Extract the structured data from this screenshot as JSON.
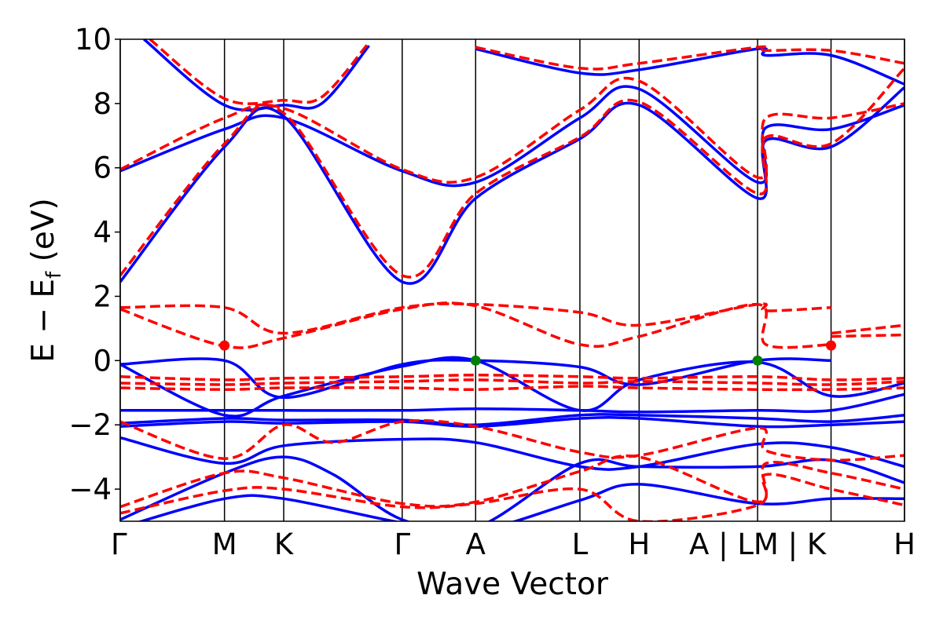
{
  "chart_data": {
    "type": "line",
    "xlabel": "Wave Vector",
    "ylabel_main": "E − E",
    "ylabel_sub": "f",
    "ylabel_unit": " (eV)",
    "ylim": [
      -5,
      10
    ],
    "yticks": [
      -4,
      -2,
      0,
      2,
      4,
      6,
      8,
      10
    ],
    "ytick_labels": [
      "−4",
      "−2",
      "0",
      "2",
      "4",
      "6",
      "8",
      "10"
    ],
    "xlim": [
      0,
      6.62
    ],
    "kpoints": [
      {
        "pos": 0.0,
        "label": "Γ"
      },
      {
        "pos": 0.88,
        "label": "M"
      },
      {
        "pos": 1.38,
        "label": "K"
      },
      {
        "pos": 2.38,
        "label": "Γ"
      },
      {
        "pos": 3.0,
        "label": "A"
      },
      {
        "pos": 3.88,
        "label": "L"
      },
      {
        "pos": 4.38,
        "label": "H"
      },
      {
        "pos": 5.38,
        "label": "A | LM | K"
      },
      {
        "pos": 6.0,
        "label": ""
      },
      {
        "pos": 6.62,
        "label": "H"
      }
    ],
    "series": [
      {
        "style": "solid",
        "color": "#0000ff",
        "bands": [
          [
            [
              0,
              -0.12
            ],
            [
              0.88,
              0.0
            ],
            [
              1.38,
              -1.15
            ],
            [
              2.38,
              -0.12
            ],
            [
              3.0,
              0.0
            ],
            [
              3.88,
              -0.2
            ],
            [
              4.38,
              -0.75
            ],
            [
              5.38,
              0.0
            ],
            [
              6.0,
              0.0
            ]
          ],
          [
            [
              0,
              -0.12
            ],
            [
              0.88,
              -1.7
            ],
            [
              1.38,
              -1.1
            ],
            [
              2.38,
              -0.18
            ],
            [
              3.0,
              0.0
            ],
            [
              3.88,
              -1.55
            ],
            [
              4.38,
              -0.6
            ],
            [
              5.38,
              -0.05
            ],
            [
              6.0,
              -1.1
            ],
            [
              6.62,
              -0.7
            ]
          ],
          [
            [
              0,
              -1.55
            ],
            [
              0.88,
              -1.55
            ],
            [
              1.38,
              -1.55
            ],
            [
              2.38,
              -1.55
            ],
            [
              3.0,
              -1.5
            ],
            [
              3.88,
              -1.55
            ],
            [
              4.38,
              -1.6
            ],
            [
              5.38,
              -1.55
            ],
            [
              6.0,
              -1.55
            ],
            [
              6.62,
              -1.05
            ]
          ],
          [
            [
              0,
              -1.95
            ],
            [
              0.88,
              -1.8
            ],
            [
              1.38,
              -1.85
            ],
            [
              2.38,
              -1.85
            ],
            [
              3.0,
              -2.0
            ],
            [
              3.88,
              -1.7
            ],
            [
              4.38,
              -1.7
            ],
            [
              5.38,
              -1.8
            ],
            [
              6.0,
              -1.9
            ],
            [
              6.62,
              -1.7
            ]
          ],
          [
            [
              0,
              -2.05
            ],
            [
              0.88,
              -1.9
            ],
            [
              1.38,
              -1.95
            ],
            [
              2.38,
              -1.9
            ],
            [
              3.0,
              -2.05
            ],
            [
              3.88,
              -1.8
            ],
            [
              4.38,
              -1.8
            ],
            [
              5.38,
              -2.05
            ],
            [
              6.0,
              -2.0
            ],
            [
              6.62,
              -1.9
            ]
          ],
          [
            [
              0,
              -2.4
            ],
            [
              0.88,
              -3.2
            ],
            [
              1.38,
              -2.65
            ],
            [
              2.38,
              -2.45
            ],
            [
              3.0,
              -2.55
            ],
            [
              3.88,
              -3.3
            ],
            [
              4.38,
              -3.3
            ],
            [
              5.38,
              -2.6
            ],
            [
              6.0,
              -2.7
            ],
            [
              6.62,
              -3.3
            ]
          ],
          [
            [
              0,
              -4.95
            ],
            [
              0.88,
              -3.5
            ],
            [
              1.38,
              -3.0
            ],
            [
              1.8,
              -3.55
            ],
            [
              2.38,
              -4.95
            ],
            [
              3.0,
              -5.2
            ],
            [
              3.88,
              -3.2
            ],
            [
              4.38,
              -3.3
            ],
            [
              5.38,
              -3.3
            ],
            [
              6.0,
              -3.1
            ],
            [
              6.62,
              -3.8
            ]
          ],
          [
            [
              0,
              -5.2
            ],
            [
              0.88,
              -4.3
            ],
            [
              1.38,
              -4.3
            ],
            [
              2.38,
              -5.05
            ],
            [
              3.0,
              -5.3
            ],
            [
              3.88,
              -4.35
            ],
            [
              4.38,
              -3.85
            ],
            [
              5.38,
              -4.45
            ],
            [
              6.0,
              -4.3
            ],
            [
              6.62,
              -4.3
            ]
          ],
          [
            [
              0,
              5.9
            ],
            [
              0.88,
              7.2
            ],
            [
              1.38,
              7.55
            ],
            [
              2.38,
              5.9
            ],
            [
              3.0,
              5.55
            ],
            [
              3.88,
              7.55
            ],
            [
              4.38,
              8.45
            ],
            [
              5.38,
              5.55
            ],
            [
              5.45,
              7.25
            ],
            [
              6.0,
              7.2
            ],
            [
              6.62,
              7.95
            ]
          ],
          [
            [
              0,
              2.45
            ],
            [
              0.88,
              6.65
            ],
            [
              1.38,
              7.6
            ],
            [
              2.38,
              2.45
            ],
            [
              3.0,
              5.05
            ],
            [
              3.88,
              6.9
            ],
            [
              4.38,
              7.95
            ],
            [
              5.38,
              5.05
            ],
            [
              5.45,
              6.85
            ],
            [
              6.0,
              6.65
            ],
            [
              6.62,
              8.5
            ]
          ],
          [
            [
              0.2,
              10.0
            ],
            [
              0.88,
              7.95
            ],
            [
              1.38,
              7.95
            ],
            [
              1.7,
              8.0
            ],
            [
              2.1,
              9.8
            ]
          ],
          [
            [
              3.0,
              9.7
            ],
            [
              3.88,
              8.95
            ],
            [
              4.38,
              9.05
            ],
            [
              5.38,
              9.7
            ],
            [
              5.45,
              9.5
            ],
            [
              6.0,
              9.5
            ],
            [
              6.62,
              8.6
            ]
          ]
        ]
      },
      {
        "style": "dashed",
        "color": "#ff0000",
        "bands": [
          [
            [
              0,
              1.65
            ],
            [
              0.88,
              1.65
            ],
            [
              1.38,
              0.85
            ],
            [
              2.38,
              1.65
            ],
            [
              3.0,
              1.75
            ],
            [
              3.88,
              1.5
            ],
            [
              4.38,
              1.1
            ],
            [
              5.38,
              1.75
            ],
            [
              5.45,
              1.55
            ],
            [
              6.0,
              1.65
            ]
          ],
          [
            [
              0,
              1.6
            ],
            [
              0.88,
              0.45
            ],
            [
              1.38,
              0.7
            ],
            [
              2.38,
              1.6
            ],
            [
              3.0,
              1.7
            ],
            [
              3.88,
              0.5
            ],
            [
              4.38,
              0.75
            ],
            [
              5.38,
              1.75
            ],
            [
              5.45,
              0.5
            ],
            [
              6.0,
              0.5
            ]
          ],
          [
            [
              6.0,
              0.85
            ],
            [
              6.62,
              1.1
            ]
          ],
          [
            [
              6.0,
              0.75
            ],
            [
              6.62,
              0.8
            ]
          ],
          [
            [
              0,
              -0.5
            ],
            [
              0.88,
              -0.6
            ],
            [
              1.38,
              -0.55
            ],
            [
              2.38,
              -0.5
            ],
            [
              3.0,
              -0.45
            ],
            [
              3.88,
              -0.5
            ],
            [
              4.38,
              -0.55
            ],
            [
              5.38,
              -0.5
            ],
            [
              6.0,
              -0.6
            ],
            [
              6.62,
              -0.55
            ]
          ],
          [
            [
              0,
              -0.7
            ],
            [
              0.88,
              -0.75
            ],
            [
              1.38,
              -0.7
            ],
            [
              2.38,
              -0.65
            ],
            [
              3.0,
              -0.6
            ],
            [
              3.88,
              -0.7
            ],
            [
              4.38,
              -0.65
            ],
            [
              5.38,
              -0.7
            ],
            [
              6.0,
              -0.75
            ],
            [
              6.62,
              -0.65
            ]
          ],
          [
            [
              0,
              -0.85
            ],
            [
              0.88,
              -0.9
            ],
            [
              1.38,
              -0.85
            ],
            [
              2.38,
              -0.85
            ],
            [
              3.0,
              -0.9
            ],
            [
              3.88,
              -0.8
            ],
            [
              4.38,
              -0.85
            ],
            [
              5.38,
              -0.9
            ],
            [
              6.0,
              -0.9
            ],
            [
              6.62,
              -0.85
            ]
          ],
          [
            [
              0,
              -1.9
            ],
            [
              0.88,
              -3.05
            ],
            [
              1.38,
              -2.0
            ],
            [
              1.8,
              -2.55
            ],
            [
              2.38,
              -1.9
            ],
            [
              3.0,
              -2.05
            ],
            [
              3.88,
              -2.85
            ],
            [
              4.38,
              -2.95
            ],
            [
              5.38,
              -2.1
            ],
            [
              5.45,
              -2.8
            ],
            [
              6.0,
              -3.1
            ],
            [
              6.62,
              -2.95
            ]
          ],
          [
            [
              0,
              -4.55
            ],
            [
              0.88,
              -3.5
            ],
            [
              1.38,
              -3.65
            ],
            [
              2.38,
              -4.45
            ],
            [
              3.0,
              -4.4
            ],
            [
              3.88,
              -3.45
            ],
            [
              4.38,
              -3.0
            ],
            [
              5.38,
              -4.4
            ],
            [
              5.45,
              -3.2
            ],
            [
              6.0,
              -3.5
            ],
            [
              6.62,
              -4.0
            ]
          ],
          [
            [
              0,
              -4.75
            ],
            [
              0.88,
              -4.05
            ],
            [
              1.38,
              -4.0
            ],
            [
              2.38,
              -4.55
            ],
            [
              3.0,
              -4.45
            ],
            [
              3.88,
              -4.0
            ],
            [
              4.38,
              -5.0
            ],
            [
              5.38,
              -4.5
            ],
            [
              5.45,
              -3.55
            ],
            [
              6.0,
              -4.0
            ],
            [
              6.62,
              -4.5
            ]
          ],
          [
            [
              0,
              5.95
            ],
            [
              0.88,
              7.55
            ],
            [
              1.38,
              7.85
            ],
            [
              2.38,
              5.95
            ],
            [
              3.0,
              5.7
            ],
            [
              3.88,
              7.8
            ],
            [
              4.38,
              8.7
            ],
            [
              5.38,
              5.7
            ],
            [
              5.45,
              7.55
            ],
            [
              6.0,
              7.55
            ],
            [
              6.62,
              8.0
            ]
          ],
          [
            [
              0,
              2.65
            ],
            [
              0.88,
              6.75
            ],
            [
              1.38,
              7.7
            ],
            [
              2.38,
              2.65
            ],
            [
              3.0,
              5.2
            ],
            [
              3.88,
              6.95
            ],
            [
              4.38,
              8.05
            ],
            [
              5.38,
              5.2
            ],
            [
              5.45,
              6.95
            ],
            [
              6.0,
              6.75
            ],
            [
              6.62,
              9.1
            ]
          ],
          [
            [
              0.25,
              10.0
            ],
            [
              0.88,
              8.15
            ],
            [
              1.38,
              8.1
            ],
            [
              1.7,
              8.2
            ],
            [
              2.1,
              9.9
            ]
          ],
          [
            [
              3.0,
              9.75
            ],
            [
              3.88,
              9.1
            ],
            [
              4.38,
              9.25
            ],
            [
              5.38,
              9.75
            ],
            [
              5.45,
              9.65
            ],
            [
              6.0,
              9.65
            ],
            [
              6.62,
              9.25
            ]
          ]
        ]
      }
    ],
    "markers": [
      {
        "x": 0.88,
        "y": 0.47,
        "color": "#ff0000"
      },
      {
        "x": 3.0,
        "y": 0.0,
        "color": "#008000"
      },
      {
        "x": 5.38,
        "y": 0.0,
        "color": "#008000"
      },
      {
        "x": 6.0,
        "y": 0.47,
        "color": "#ff0000"
      }
    ],
    "grid": false
  }
}
